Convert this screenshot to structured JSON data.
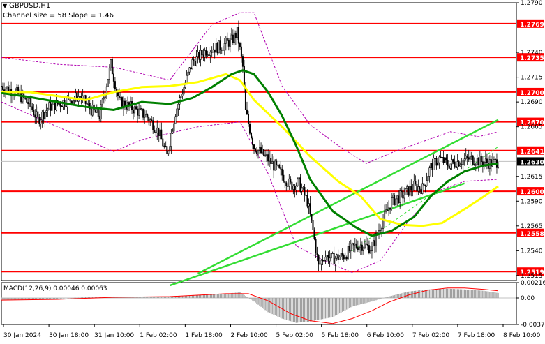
{
  "chart_data": {
    "type": "candlestick",
    "symbol_label": "GBPUSD,H1",
    "channel_label": "Channel size = 58  Slope = 1.46",
    "macd_label": "MACD(12,26,9) 0.00046 0.00063",
    "y_axis": {
      "range": [
        1.251,
        1.279
      ],
      "ticks": [
        "1.2790",
        "1.2740",
        "1.2715",
        "1.2690",
        "1.2665",
        "1.2615",
        "1.2590",
        "1.2565",
        "1.2540",
        "1.2515"
      ]
    },
    "levels": [
      {
        "value": 1.2769,
        "label": "1.2769"
      },
      {
        "value": 1.2735,
        "label": "1.2735"
      },
      {
        "value": 1.27,
        "label": "1.2700"
      },
      {
        "value": 1.267,
        "label": "1.2670"
      },
      {
        "value": 1.2641,
        "label": "1.2641"
      },
      {
        "value": 1.26,
        "label": "1.2600"
      },
      {
        "value": 1.2558,
        "label": "1.2558"
      },
      {
        "value": 1.2519,
        "label": "1.2519"
      }
    ],
    "current_price": {
      "value": 1.263,
      "label": "1.2630"
    },
    "x_labels": [
      "30 Jan 2024",
      "30 Jan 18:00",
      "31 Jan 10:00",
      "1 Feb 02:00",
      "1 Feb 18:00",
      "2 Feb 10:00",
      "5 Feb 02:00",
      "5 Feb 18:00",
      "6 Feb 10:00",
      "7 Feb 02:00",
      "7 Feb 18:00",
      "8 Feb 10:00"
    ],
    "macd_axis": {
      "range": [
        -0.00373,
        0.00216
      ],
      "ticks": [
        "0.00216",
        "0.00",
        "-0.00373"
      ]
    },
    "key_closes": [
      {
        "x": 0,
        "y": 1.2706
      },
      {
        "x": 10,
        "y": 1.27
      },
      {
        "x": 20,
        "y": 1.2688
      },
      {
        "x": 26,
        "y": 1.2672
      },
      {
        "x": 34,
        "y": 1.2685
      },
      {
        "x": 44,
        "y": 1.269
      },
      {
        "x": 56,
        "y": 1.2696
      },
      {
        "x": 64,
        "y": 1.2682
      },
      {
        "x": 70,
        "y": 1.2676
      },
      {
        "x": 78,
        "y": 1.2728
      },
      {
        "x": 84,
        "y": 1.269
      },
      {
        "x": 92,
        "y": 1.2685
      },
      {
        "x": 104,
        "y": 1.2675
      },
      {
        "x": 112,
        "y": 1.266
      },
      {
        "x": 118,
        "y": 1.2636
      },
      {
        "x": 124,
        "y": 1.268
      },
      {
        "x": 130,
        "y": 1.2705
      },
      {
        "x": 136,
        "y": 1.273
      },
      {
        "x": 146,
        "y": 1.2742
      },
      {
        "x": 156,
        "y": 1.2746
      },
      {
        "x": 164,
        "y": 1.2752
      },
      {
        "x": 168,
        "y": 1.276
      },
      {
        "x": 172,
        "y": 1.2725
      },
      {
        "x": 174,
        "y": 1.268
      },
      {
        "x": 180,
        "y": 1.2645
      },
      {
        "x": 188,
        "y": 1.2635
      },
      {
        "x": 198,
        "y": 1.262
      },
      {
        "x": 206,
        "y": 1.2606
      },
      {
        "x": 212,
        "y": 1.2608
      },
      {
        "x": 218,
        "y": 1.259
      },
      {
        "x": 222,
        "y": 1.256
      },
      {
        "x": 226,
        "y": 1.2524
      },
      {
        "x": 230,
        "y": 1.2535
      },
      {
        "x": 236,
        "y": 1.2532
      },
      {
        "x": 244,
        "y": 1.2535
      },
      {
        "x": 252,
        "y": 1.2545
      },
      {
        "x": 258,
        "y": 1.2546
      },
      {
        "x": 264,
        "y": 1.2542
      },
      {
        "x": 270,
        "y": 1.2565
      },
      {
        "x": 278,
        "y": 1.259
      },
      {
        "x": 286,
        "y": 1.2596
      },
      {
        "x": 294,
        "y": 1.2605
      },
      {
        "x": 300,
        "y": 1.2603
      },
      {
        "x": 306,
        "y": 1.2625
      },
      {
        "x": 312,
        "y": 1.2633
      },
      {
        "x": 318,
        "y": 1.2627
      },
      {
        "x": 326,
        "y": 1.263
      },
      {
        "x": 334,
        "y": 1.2633
      },
      {
        "x": 342,
        "y": 1.263
      },
      {
        "x": 350,
        "y": 1.2628
      },
      {
        "x": 354,
        "y": 1.263
      }
    ],
    "series": [
      {
        "name": "",
        "color": "#ffff00",
        "points": [
          [
            0,
            1.27
          ],
          [
            20,
            1.27
          ],
          [
            40,
            1.2696
          ],
          [
            60,
            1.2692
          ],
          [
            80,
            1.27
          ],
          [
            100,
            1.2705
          ],
          [
            120,
            1.2706
          ],
          [
            140,
            1.271
          ],
          [
            160,
            1.2718
          ],
          [
            170,
            1.2712
          ],
          [
            180,
            1.2692
          ],
          [
            200,
            1.2665
          ],
          [
            220,
            1.2635
          ],
          [
            240,
            1.261
          ],
          [
            256,
            1.2595
          ],
          [
            270,
            1.2572
          ],
          [
            286,
            1.2566
          ],
          [
            300,
            1.2565
          ],
          [
            314,
            1.2568
          ],
          [
            330,
            1.2582
          ],
          [
            344,
            1.2595
          ],
          [
            354,
            1.2605
          ]
        ]
      },
      {
        "name": "",
        "color": "#008000",
        "points": [
          [
            0,
            1.2699
          ],
          [
            20,
            1.2695
          ],
          [
            40,
            1.269
          ],
          [
            60,
            1.2685
          ],
          [
            80,
            1.2682
          ],
          [
            100,
            1.269
          ],
          [
            120,
            1.2688
          ],
          [
            136,
            1.2694
          ],
          [
            150,
            1.2705
          ],
          [
            164,
            1.2718
          ],
          [
            172,
            1.2722
          ],
          [
            180,
            1.2718
          ],
          [
            190,
            1.27
          ],
          [
            200,
            1.2676
          ],
          [
            210,
            1.2646
          ],
          [
            220,
            1.2612
          ],
          [
            236,
            1.258
          ],
          [
            252,
            1.2564
          ],
          [
            264,
            1.2555
          ],
          [
            278,
            1.256
          ],
          [
            294,
            1.2574
          ],
          [
            306,
            1.2595
          ],
          [
            318,
            1.261
          ],
          [
            330,
            1.262
          ],
          [
            344,
            1.2626
          ],
          [
            354,
            1.2628
          ]
        ]
      }
    ],
    "envelope_upper": [
      [
        0,
        1.2735
      ],
      [
        40,
        1.2728
      ],
      [
        80,
        1.2725
      ],
      [
        120,
        1.2712
      ],
      [
        150,
        1.2768
      ],
      [
        170,
        1.278
      ],
      [
        180,
        1.278
      ],
      [
        200,
        1.2706
      ],
      [
        220,
        1.2667
      ],
      [
        240,
        1.2646
      ],
      [
        260,
        1.2628
      ],
      [
        280,
        1.264
      ],
      [
        300,
        1.265
      ],
      [
        320,
        1.266
      ],
      [
        340,
        1.2655
      ],
      [
        354,
        1.266
      ]
    ],
    "envelope_lower": [
      [
        0,
        1.269
      ],
      [
        40,
        1.2665
      ],
      [
        80,
        1.264
      ],
      [
        100,
        1.2652
      ],
      [
        140,
        1.2665
      ],
      [
        170,
        1.267
      ],
      [
        190,
        1.2618
      ],
      [
        210,
        1.2545
      ],
      [
        230,
        1.253
      ],
      [
        250,
        1.2518
      ],
      [
        270,
        1.253
      ],
      [
        290,
        1.257
      ],
      [
        310,
        1.26
      ],
      [
        330,
        1.261
      ],
      [
        354,
        1.2612
      ]
    ],
    "channel": {
      "lower_line": [
        [
          120,
          1.2505
        ],
        [
          330,
          1.2608
        ]
      ],
      "upper_line": [
        [
          140,
          1.2517
        ],
        [
          354,
          1.2672
        ]
      ],
      "mid_dashed": [
        [
          250,
          1.254
        ],
        [
          354,
          1.2645
        ]
      ]
    },
    "macd_histogram": [
      [
        0,
        -0.0003
      ],
      [
        20,
        -0.0002
      ],
      [
        40,
        -0.0001
      ],
      [
        60,
        0.0001
      ],
      [
        80,
        0.0002
      ],
      [
        100,
        0.0001
      ],
      [
        120,
        0.0002
      ],
      [
        140,
        0.0004
      ],
      [
        160,
        0.0006
      ],
      [
        170,
        0.0008
      ],
      [
        180,
        -0.0005
      ],
      [
        190,
        -0.002
      ],
      [
        200,
        -0.0029
      ],
      [
        210,
        -0.0035
      ],
      [
        220,
        -0.0033
      ],
      [
        236,
        -0.0027
      ],
      [
        250,
        -0.0012
      ],
      [
        264,
        -0.0005
      ],
      [
        276,
        0.0002
      ],
      [
        290,
        0.0009
      ],
      [
        304,
        0.0012
      ],
      [
        318,
        0.0013
      ],
      [
        330,
        0.0012
      ],
      [
        344,
        0.001
      ],
      [
        354,
        0.0007
      ]
    ],
    "macd_signal": [
      [
        0,
        -0.0003
      ],
      [
        40,
        -0.0002
      ],
      [
        80,
        0.0001
      ],
      [
        120,
        0.0002
      ],
      [
        160,
        0.0006
      ],
      [
        176,
        0.0006
      ],
      [
        190,
        -0.0004
      ],
      [
        206,
        -0.0022
      ],
      [
        220,
        -0.0032
      ],
      [
        236,
        -0.0036
      ],
      [
        250,
        -0.0029
      ],
      [
        264,
        -0.0018
      ],
      [
        276,
        -0.0006
      ],
      [
        290,
        0.0004
      ],
      [
        304,
        0.0011
      ],
      [
        318,
        0.0014
      ],
      [
        330,
        0.0014
      ],
      [
        344,
        0.0012
      ],
      [
        354,
        0.001
      ]
    ]
  }
}
